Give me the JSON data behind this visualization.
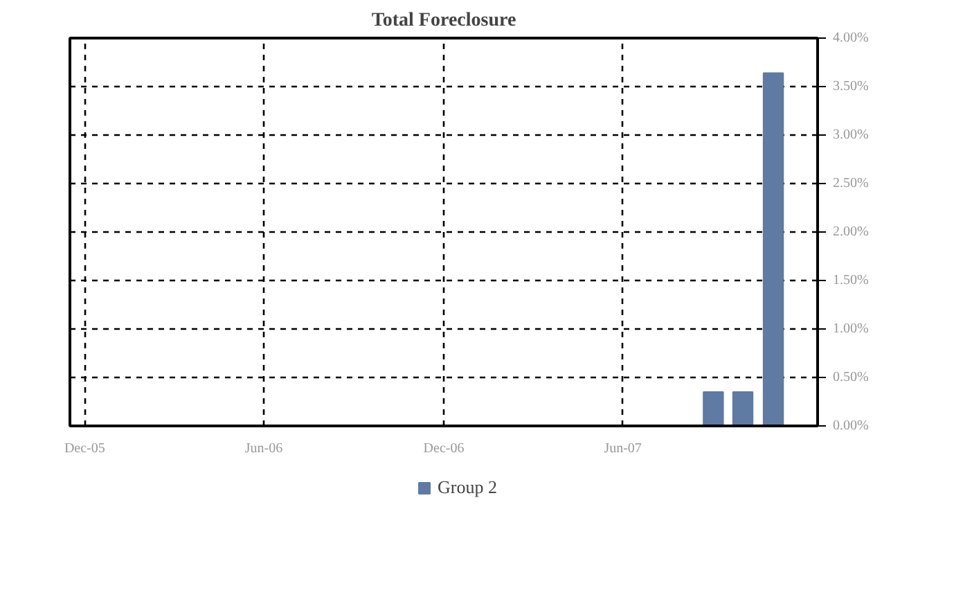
{
  "chart_data": {
    "type": "bar",
    "title": "Total Foreclosure",
    "x": [
      "2007-09",
      "2007-10",
      "2007-11"
    ],
    "series": [
      {
        "name": "Group 2",
        "color": "#5f7aa3",
        "values": [
          0.35,
          0.35,
          3.64
        ]
      }
    ],
    "xlim": [
      "2005-11-16",
      "2007-12-16"
    ],
    "xticks": [
      {
        "value": "2005-12",
        "label": "Dec-05"
      },
      {
        "value": "2006-06",
        "label": "Jun-06"
      },
      {
        "value": "2006-12",
        "label": "Dec-06"
      },
      {
        "value": "2007-06",
        "label": "Jun-07"
      }
    ],
    "ylim": [
      0,
      4
    ],
    "yticks": [
      {
        "value": 0,
        "label": "0.00%"
      },
      {
        "value": 0.5,
        "label": "0.50%"
      },
      {
        "value": 1,
        "label": "1.00%"
      },
      {
        "value": 1.5,
        "label": "1.50%"
      },
      {
        "value": 2,
        "label": "2.00%"
      },
      {
        "value": 2.5,
        "label": "2.50%"
      },
      {
        "value": 3,
        "label": "3.00%"
      },
      {
        "value": 3.5,
        "label": "3.50%"
      },
      {
        "value": 4,
        "label": "4.00%"
      }
    ],
    "grid": true,
    "legend": "bottom",
    "line_style": "dashed"
  }
}
